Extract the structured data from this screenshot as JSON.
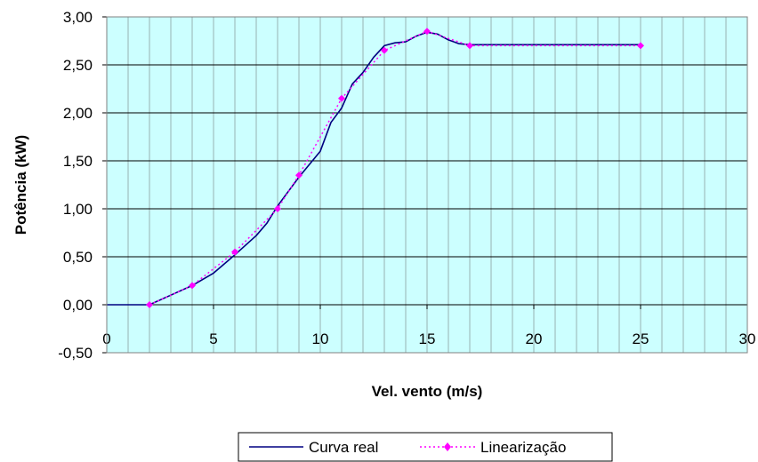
{
  "chart_data": {
    "type": "line",
    "xlabel": "Vel. vento (m/s)",
    "ylabel": "Potência (kW)",
    "xlim": [
      0,
      30
    ],
    "ylim": [
      -0.5,
      3.0
    ],
    "x_ticks": [
      0,
      5,
      10,
      15,
      20,
      25,
      30
    ],
    "x_tick_labels": [
      "0",
      "5",
      "10",
      "15",
      "20",
      "25",
      "30"
    ],
    "y_ticks": [
      -0.5,
      0,
      0.5,
      1.0,
      1.5,
      2.0,
      2.5,
      3.0
    ],
    "y_tick_labels": [
      "-0,50",
      "0,00",
      "0,50",
      "1,00",
      "1,50",
      "2,00",
      "2,50",
      "3,00"
    ],
    "grid": {
      "horizontal": true,
      "vertical_minor": true,
      "x_minor_step": 1
    },
    "legend_position": "bottom-center",
    "colors": {
      "plot_background": "#ccffff",
      "curva_real": "#000080",
      "linearizacao": "#ff00ff",
      "grid": "#000000"
    },
    "series": [
      {
        "name": "Curva real",
        "style": "solid",
        "x": [
          0,
          2,
          3,
          4,
          5,
          6,
          7,
          7.5,
          8,
          9,
          10,
          10.5,
          11,
          11.5,
          12,
          12.5,
          13,
          13.5,
          14,
          14.5,
          15,
          15.5,
          16,
          16.5,
          17,
          20,
          25
        ],
        "y": [
          0,
          0,
          0.1,
          0.2,
          0.33,
          0.52,
          0.72,
          0.85,
          1.03,
          1.33,
          1.6,
          1.9,
          2.05,
          2.3,
          2.42,
          2.58,
          2.7,
          2.73,
          2.74,
          2.8,
          2.84,
          2.82,
          2.76,
          2.72,
          2.71,
          2.71,
          2.71
        ]
      },
      {
        "name": "Linearização",
        "style": "dotted",
        "markers": "diamond",
        "x": [
          2,
          4,
          6,
          8,
          9,
          11,
          13,
          15,
          17,
          25
        ],
        "y": [
          0,
          0.2,
          0.55,
          1.0,
          1.35,
          2.15,
          2.65,
          2.85,
          2.7,
          2.7
        ]
      }
    ]
  }
}
